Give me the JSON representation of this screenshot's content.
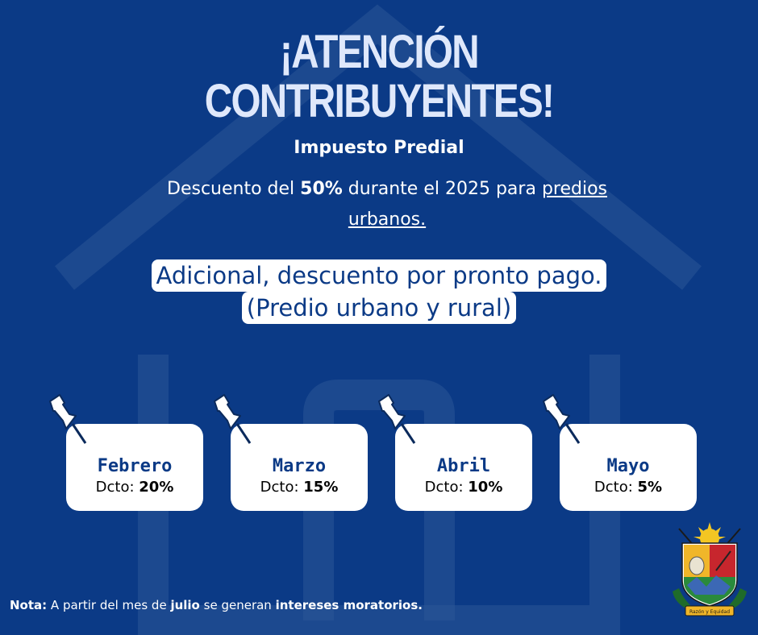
{
  "header": {
    "title_line1": "¡ATENCIÓN",
    "title_line2": "CONTRIBUYENTES!",
    "subtitle": "Impuesto Predial"
  },
  "promo": {
    "prefix": "Descuento del ",
    "percent": "50%",
    "middle": " durante el 2025 para ",
    "link_text": "predios urbanos."
  },
  "highlight": {
    "line1": "Adicional, descuento por pronto pago.",
    "line2": " (Predio urbano y rural)"
  },
  "cards": [
    {
      "month": "Febrero",
      "dcto_label": "Dcto: ",
      "dcto_value": "20%"
    },
    {
      "month": "Marzo",
      "dcto_label": "Dcto: ",
      "dcto_value": "15%"
    },
    {
      "month": "Abril",
      "dcto_label": "Dcto: ",
      "dcto_value": "10%"
    },
    {
      "month": "Mayo",
      "dcto_label": "Dcto: ",
      "dcto_value": "5%"
    }
  ],
  "note": {
    "label": "Nota:",
    "text1": " A partir del mes de ",
    "bold1": "julio",
    "text2": " se generan ",
    "bold2": "intereses moratorios."
  },
  "crest": {
    "motto": "Razón y Equidad"
  },
  "colors": {
    "background": "#0b3a86",
    "title": "#dfe8fb",
    "accent": "#ffffff"
  }
}
